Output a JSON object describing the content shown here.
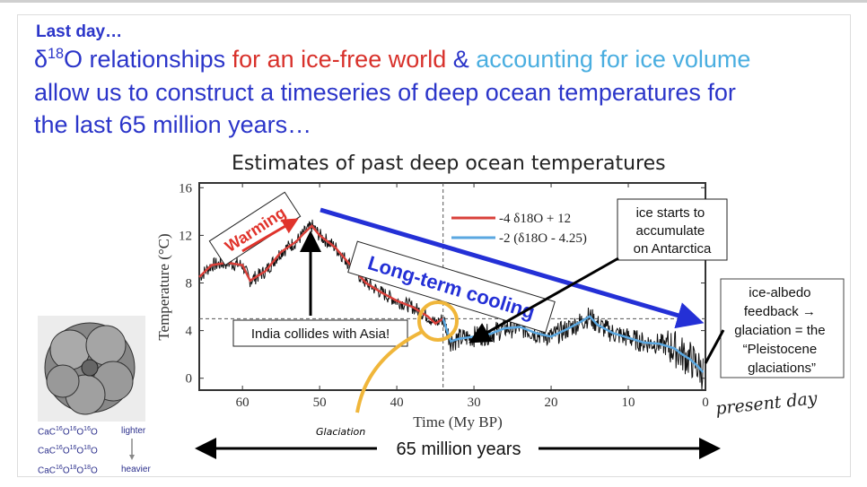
{
  "slide": {
    "kicker": "Last day…",
    "line1": {
      "a": "δ",
      "sup": "18",
      "b": "O relationships ",
      "red": "for an ice-free world",
      "amp": " & ",
      "blue": "accounting for ice volume"
    },
    "line2": "allow us to construct a timeseries of deep ocean temperatures for",
    "line3": "the last 65 million years…",
    "colors": {
      "text": "#2b35c9",
      "red": "#d8312b",
      "light_blue": "#4aaee0"
    }
  },
  "chart_data": {
    "type": "line",
    "title": "Estimates of past deep ocean temperatures",
    "xlabel": "Time (My BP)",
    "ylabel": "Temperature (°C)",
    "xlim": [
      65.6,
      0
    ],
    "ylim": [
      -1,
      16.4
    ],
    "xticks": [
      "60",
      "50",
      "40",
      "30",
      "20",
      "10",
      "0"
    ],
    "yticks": [
      "16",
      "12",
      "8",
      "4",
      "0"
    ],
    "reference_lines": {
      "horizontal_y": 5,
      "vertical_x": 34
    },
    "legend_position": "top-right",
    "series": [
      {
        "name": "-4 δ18O + 12",
        "color": "#d9403a",
        "x": [
          65.6,
          64,
          62,
          60,
          59,
          57,
          55,
          53,
          52,
          51,
          50,
          48,
          46,
          44,
          42,
          40,
          38,
          36,
          35,
          34
        ],
        "y": [
          8.5,
          9.5,
          9.7,
          9.5,
          8.2,
          9,
          10.6,
          11.5,
          12.2,
          12.8,
          12,
          11,
          9.5,
          8,
          7.2,
          6.5,
          6,
          5.2,
          4.6,
          5
        ]
      },
      {
        "name": "-2 (δ18O - 4.25)",
        "color": "#5aa7e0",
        "x": [
          34,
          33.5,
          33,
          32,
          30,
          28,
          26,
          24,
          22,
          20,
          18,
          16,
          15,
          14,
          12,
          10,
          8,
          6,
          4,
          3,
          2,
          1,
          0.3
        ],
        "y": [
          5,
          4,
          3.1,
          3.3,
          3.5,
          3.7,
          4.2,
          4.3,
          3.8,
          3.5,
          4.1,
          4.8,
          5.2,
          4.5,
          3.8,
          3.4,
          3,
          2.9,
          2.5,
          2,
          1.6,
          1,
          0.5
        ]
      }
    ],
    "annotations": {
      "warming": "Warming",
      "cooling": "Long-term cooling",
      "india": "India collides with Asia!",
      "antarctica": [
        "ice starts to",
        "accumulate",
        "on Antarctica"
      ],
      "albedo": [
        "ice-albedo",
        "feedback →",
        "glaciation = the",
        "“Pleistocene",
        "glaciations”"
      ],
      "glaciation_handwritten": "Glaciation",
      "present_handwritten": "present day",
      "span": "65 million years"
    }
  },
  "foram": {
    "rows": [
      {
        "formula": [
          "CaC",
          "16",
          "O",
          "16",
          "O",
          "16",
          "O"
        ],
        "label": "lighter"
      },
      {
        "formula": [
          "CaC",
          "16",
          "O",
          "16",
          "O",
          "18",
          "O"
        ],
        "label": ""
      },
      {
        "formula": [
          "CaC",
          "16",
          "O",
          "18",
          "O",
          "18",
          "O"
        ],
        "label": "heavier"
      }
    ]
  }
}
